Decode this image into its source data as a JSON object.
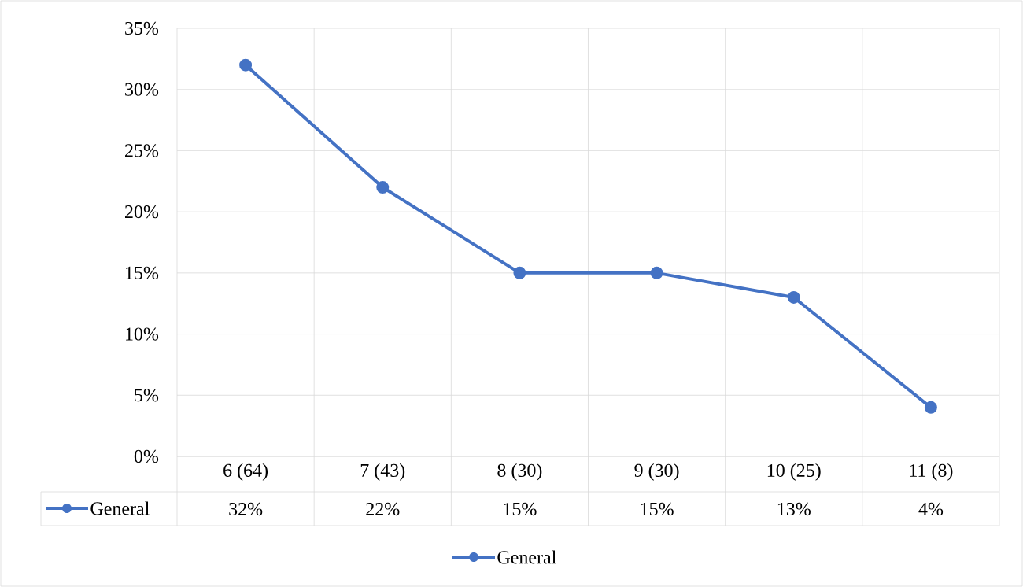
{
  "chart_data": {
    "type": "line",
    "categories": [
      "6 (64)",
      "7 (43)",
      "8 (30)",
      "9 (30)",
      "10 (25)",
      "11 (8)"
    ],
    "series": [
      {
        "name": "General",
        "color": "#4472c4",
        "values": [
          32,
          22,
          15,
          15,
          13,
          4
        ]
      }
    ],
    "ylim": [
      0,
      35
    ],
    "yticks": [
      {
        "value": 0,
        "label": "0%"
      },
      {
        "value": 5,
        "label": "5%"
      },
      {
        "value": 10,
        "label": "10%"
      },
      {
        "value": 15,
        "label": "15%"
      },
      {
        "value": 20,
        "label": "20%"
      },
      {
        "value": 25,
        "label": "25%"
      },
      {
        "value": 30,
        "label": "30%"
      },
      {
        "value": 35,
        "label": "35%"
      }
    ],
    "value_labels": [
      "32%",
      "22%",
      "15%",
      "15%",
      "13%",
      "4%"
    ],
    "grid": true,
    "legend": "bottom",
    "marker": "circle",
    "line_style": "solid"
  }
}
